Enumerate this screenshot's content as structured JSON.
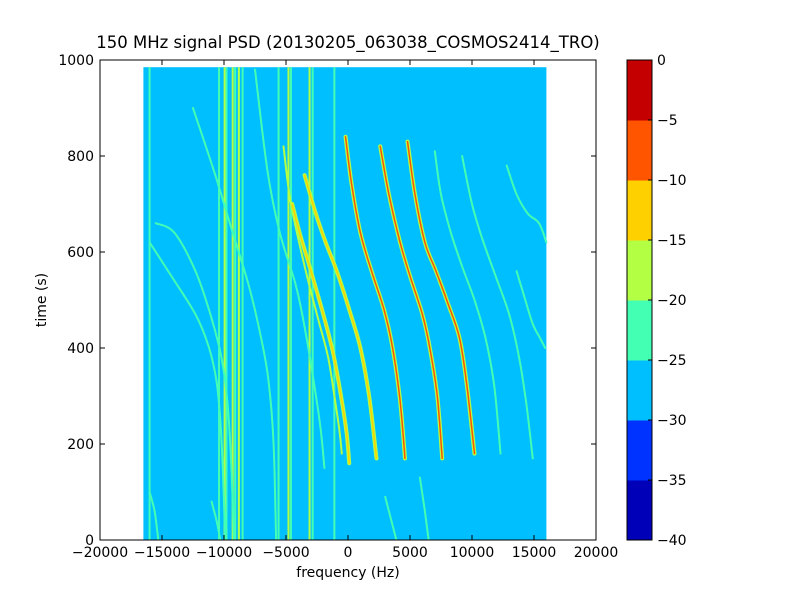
{
  "chart_data": {
    "type": "heatmap",
    "title": "150 MHz signal PSD (20130205_063038_COSMOS2414_TRO)",
    "xlabel": "frequency (Hz)",
    "ylabel": "time (s)",
    "xlim": [
      -20000,
      20000
    ],
    "ylim": [
      0,
      1000
    ],
    "xticks": [
      -20000,
      -15000,
      -10000,
      -5000,
      0,
      5000,
      10000,
      15000,
      20000
    ],
    "xtick_labels": [
      "−20000",
      "−15000",
      "−10000",
      "−5000",
      "0",
      "5000",
      "10000",
      "15000",
      "20000"
    ],
    "yticks": [
      0,
      200,
      400,
      600,
      800,
      1000
    ],
    "ytick_labels": [
      "0",
      "200",
      "400",
      "600",
      "800",
      "1000"
    ],
    "data_extent": {
      "freq": [
        -16500,
        16000
      ],
      "time": [
        0,
        985
      ]
    },
    "background_level": -27.5,
    "grid": false,
    "colorbar": {
      "levels": [
        -40,
        -35,
        -30,
        -25,
        -20,
        -15,
        -10,
        -5,
        0
      ],
      "tick_labels": [
        "−40",
        "−35",
        "−30",
        "−25",
        "−20",
        "−15",
        "−10",
        "−5",
        "0"
      ],
      "colors": [
        "#0000b8",
        "#0033ff",
        "#00bfff",
        "#43ffb3",
        "#b3ff43",
        "#ffd000",
        "#ff5500",
        "#c40000"
      ]
    },
    "vertical_lines": [
      {
        "freq": -16000,
        "t0": 0,
        "t1": 985,
        "level": -22.5
      },
      {
        "freq": -10400,
        "t0": 0,
        "t1": 985,
        "level": -22.5
      },
      {
        "freq": -9950,
        "t0": 0,
        "t1": 985,
        "level": -17.5
      },
      {
        "freq": -9800,
        "t0": 0,
        "t1": 985,
        "level": -22.5
      },
      {
        "freq": -9300,
        "t0": 0,
        "t1": 985,
        "level": -17.5
      },
      {
        "freq": -9100,
        "t0": 0,
        "t1": 985,
        "level": -22.5
      },
      {
        "freq": -8800,
        "t0": 0,
        "t1": 985,
        "level": -17.5
      },
      {
        "freq": -8500,
        "t0": 0,
        "t1": 985,
        "level": -22.5
      },
      {
        "freq": -5600,
        "t0": 0,
        "t1": 985,
        "level": -22.5
      },
      {
        "freq": -4800,
        "t0": 0,
        "t1": 985,
        "level": -17.5
      },
      {
        "freq": -4600,
        "t0": 0,
        "t1": 985,
        "level": -22.5
      },
      {
        "freq": -3100,
        "t0": 0,
        "t1": 985,
        "level": -17.5
      },
      {
        "freq": -2850,
        "t0": 0,
        "t1": 985,
        "level": -22.5
      },
      {
        "freq": -1100,
        "t0": 0,
        "t1": 985,
        "level": -22.5
      }
    ],
    "traces": [
      {
        "points": [
          [
            -16000,
            620
          ],
          [
            -14500,
            560
          ],
          [
            -12300,
            470
          ],
          [
            -11200,
            400
          ],
          [
            -10600,
            330
          ],
          [
            -10300,
            250
          ],
          [
            -10100,
            150
          ],
          [
            -9900,
            0
          ]
        ],
        "level": -22.5
      },
      {
        "points": [
          [
            -15500,
            660
          ],
          [
            -14000,
            640
          ],
          [
            -12300,
            560
          ],
          [
            -11100,
            470
          ],
          [
            -10200,
            380
          ],
          [
            -9700,
            280
          ],
          [
            -9400,
            150
          ],
          [
            -9200,
            0
          ]
        ],
        "level": -22.5
      },
      {
        "points": [
          [
            -12500,
            900
          ],
          [
            -10700,
            760
          ],
          [
            -9300,
            640
          ],
          [
            -8000,
            530
          ],
          [
            -7000,
            420
          ],
          [
            -6400,
            330
          ],
          [
            -6000,
            200
          ],
          [
            -5800,
            0
          ]
        ],
        "level": -22.5
      },
      {
        "points": [
          [
            -7500,
            980
          ],
          [
            -6500,
            770
          ],
          [
            -5500,
            640
          ],
          [
            -4200,
            530
          ],
          [
            -3400,
            430
          ],
          [
            -2700,
            320
          ],
          [
            -2200,
            230
          ],
          [
            -1900,
            150
          ]
        ],
        "level": -22.5
      },
      {
        "points": [
          [
            -5200,
            820
          ],
          [
            -4600,
            700
          ],
          [
            -3400,
            560
          ],
          [
            -2400,
            460
          ],
          [
            -1600,
            380
          ],
          [
            -1100,
            300
          ],
          [
            -700,
            230
          ],
          [
            -500,
            180
          ]
        ],
        "level": -17.5
      },
      {
        "points": [
          [
            -4500,
            700
          ],
          [
            -3900,
            640
          ],
          [
            -3100,
            570
          ],
          [
            -2100,
            480
          ],
          [
            -1200,
            390
          ],
          [
            -500,
            290
          ],
          [
            -100,
            220
          ],
          [
            100,
            160
          ]
        ],
        "level": -12.5
      },
      {
        "points": [
          [
            -3500,
            760
          ],
          [
            -2600,
            680
          ],
          [
            -1800,
            620
          ],
          [
            -900,
            560
          ],
          [
            100,
            480
          ],
          [
            1000,
            400
          ],
          [
            1700,
            300
          ],
          [
            2300,
            170
          ]
        ],
        "level": -12.5
      },
      {
        "points": [
          [
            -200,
            840
          ],
          [
            300,
            740
          ],
          [
            1000,
            640
          ],
          [
            1900,
            560
          ],
          [
            2900,
            480
          ],
          [
            3600,
            400
          ],
          [
            4200,
            290
          ],
          [
            4600,
            170
          ]
        ],
        "level": -7.5
      },
      {
        "points": [
          [
            2600,
            820
          ],
          [
            3300,
            720
          ],
          [
            4200,
            620
          ],
          [
            5000,
            550
          ],
          [
            6000,
            470
          ],
          [
            6600,
            400
          ],
          [
            7200,
            300
          ],
          [
            7600,
            170
          ]
        ],
        "level": -7.5
      },
      {
        "points": [
          [
            4800,
            830
          ],
          [
            5400,
            720
          ],
          [
            6200,
            620
          ],
          [
            7100,
            560
          ],
          [
            8100,
            490
          ],
          [
            9000,
            420
          ],
          [
            9600,
            320
          ],
          [
            10200,
            180
          ]
        ],
        "level": -7.5
      },
      {
        "points": [
          [
            7000,
            810
          ],
          [
            7500,
            720
          ],
          [
            8300,
            640
          ],
          [
            9200,
            570
          ],
          [
            10200,
            500
          ],
          [
            11100,
            420
          ],
          [
            11800,
            320
          ],
          [
            12300,
            180
          ]
        ],
        "level": -22.5
      },
      {
        "points": [
          [
            9200,
            800
          ],
          [
            10000,
            700
          ],
          [
            10800,
            630
          ],
          [
            11900,
            550
          ],
          [
            13000,
            470
          ],
          [
            13800,
            380
          ],
          [
            14400,
            280
          ],
          [
            14900,
            170
          ]
        ],
        "level": -22.5
      },
      {
        "points": [
          [
            12800,
            780
          ],
          [
            13600,
            720
          ],
          [
            14500,
            680
          ],
          [
            15400,
            660
          ],
          [
            16000,
            620
          ]
        ],
        "level": -22.5
      },
      {
        "points": [
          [
            13600,
            560
          ],
          [
            14300,
            500
          ],
          [
            14900,
            450
          ],
          [
            15500,
            420
          ],
          [
            15900,
            400
          ]
        ],
        "level": -22.5
      },
      {
        "points": [
          [
            -16000,
            100
          ],
          [
            -15600,
            60
          ],
          [
            -15300,
            0
          ]
        ],
        "level": -22.5
      },
      {
        "points": [
          [
            -11000,
            80
          ],
          [
            -10600,
            40
          ],
          [
            -10300,
            0
          ]
        ],
        "level": -22.5
      },
      {
        "points": [
          [
            3000,
            90
          ],
          [
            3500,
            40
          ],
          [
            3900,
            0
          ]
        ],
        "level": -22.5
      },
      {
        "points": [
          [
            5800,
            130
          ],
          [
            6200,
            60
          ],
          [
            6500,
            0
          ]
        ],
        "level": -22.5
      }
    ]
  }
}
